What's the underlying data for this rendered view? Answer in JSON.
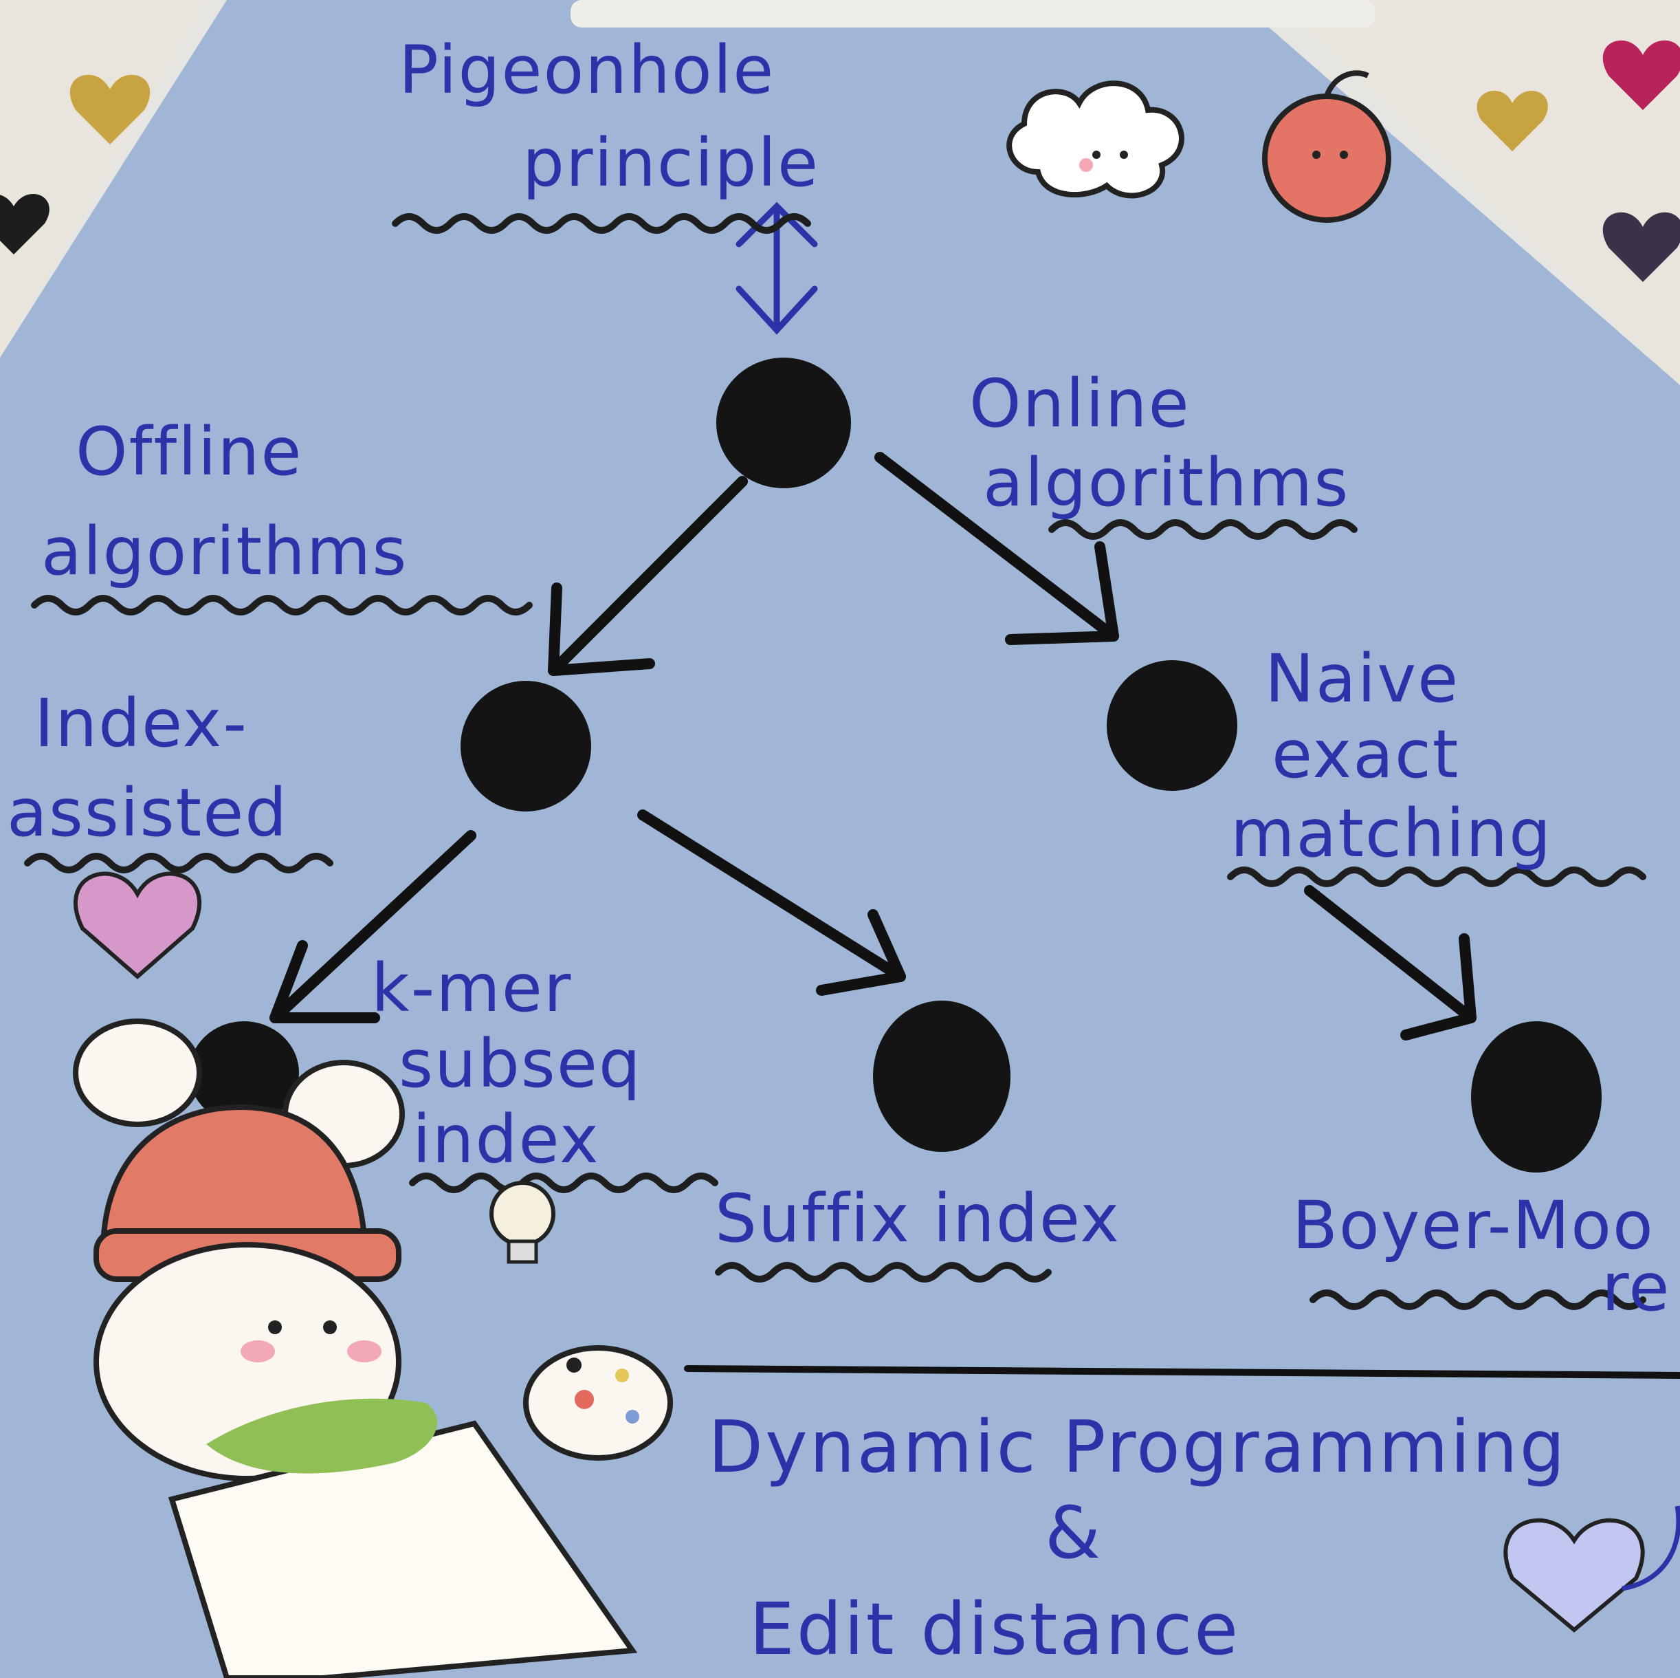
{
  "colors": {
    "ink": "#2b33a8",
    "paper": "#9fb6d6",
    "node": "#121212",
    "tape": "#eceae4"
  },
  "diagram": {
    "root": {
      "label_line1": "Pigeonhole",
      "label_line2": "principle"
    },
    "offline": {
      "label_line1": "Offline",
      "label_line2": "algorithms"
    },
    "online": {
      "label_line1": "Online",
      "label_line2": "algorithms"
    },
    "index_assisted": {
      "label_line1": "Index-",
      "label_line2": "assisted"
    },
    "naive": {
      "label_line1": "Naive",
      "label_line2": "exact",
      "label_line3": "matching"
    },
    "kmer": {
      "label_line1": "k-mer",
      "label_line2": "subseq",
      "label_line3": "index"
    },
    "suffix": {
      "label": "Suffix index"
    },
    "boyer": {
      "label_line1": "Boyer-Moo",
      "label_line2": "re"
    },
    "footer": {
      "line1": "Dynamic Programming",
      "line2": "&",
      "line3": "Edit distance"
    }
  }
}
